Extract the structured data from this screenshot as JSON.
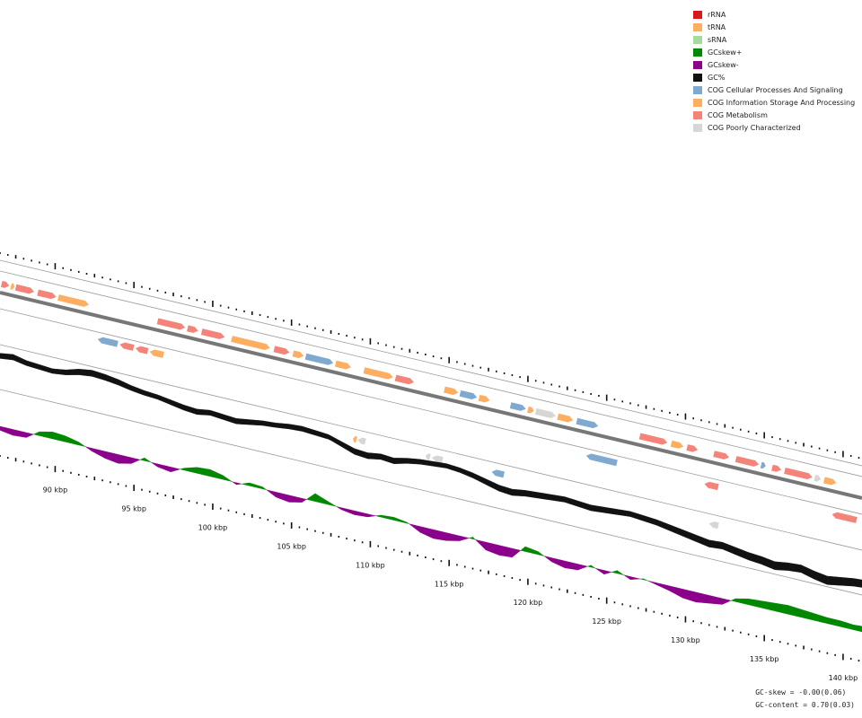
{
  "legend": [
    {
      "label": "rRNA",
      "color": "#d7191c"
    },
    {
      "label": "tRNA",
      "color": "#fdae61"
    },
    {
      "label": "sRNA",
      "color": "#a6dba0"
    },
    {
      "label": "GCskew+",
      "color": "#008800"
    },
    {
      "label": "GCskew-",
      "color": "#8b008b"
    },
    {
      "label": "GC%",
      "color": "#111111"
    },
    {
      "label": "COG Cellular Processes And Signaling",
      "color": "#7fa9cf"
    },
    {
      "label": "COG Information Storage And Processing",
      "color": "#fdae61"
    },
    {
      "label": "COG Metabolism",
      "color": "#f4847a"
    },
    {
      "label": "COG Poorly Characterized",
      "color": "#d6d6d6"
    }
  ],
  "stats": {
    "gc_skew": "GC-skew = -0.00(0.06)",
    "gc_content": "GC-content = 0.70(0.03)"
  },
  "kbp_labels": [
    "90 kbp",
    "95 kbp",
    "100 kbp",
    "105 kbp",
    "110 kbp",
    "115 kbp",
    "120 kbp",
    "125 kbp",
    "130 kbp",
    "135 kbp",
    "140 kbp"
  ],
  "colors": {
    "metabolism": "#f4847a",
    "info": "#fdae61",
    "cellular": "#7fa9cf",
    "poorly": "#d6d6d6",
    "gc_content": "#111111",
    "skew_pos": "#008800",
    "skew_neg": "#8b008b",
    "backbone": "#777777"
  },
  "features_forward": [
    {
      "start": 86.6,
      "end": 87.1,
      "cog": "metabolism"
    },
    {
      "start": 87.2,
      "end": 87.4,
      "cog": "info"
    },
    {
      "start": 87.5,
      "end": 88.7,
      "cog": "metabolism"
    },
    {
      "start": 88.9,
      "end": 90.1,
      "cog": "metabolism"
    },
    {
      "start": 90.2,
      "end": 92.2,
      "cog": "info"
    },
    {
      "start": 96.5,
      "end": 98.3,
      "cog": "metabolism"
    },
    {
      "start": 98.4,
      "end": 99.1,
      "cog": "metabolism"
    },
    {
      "start": 99.3,
      "end": 100.8,
      "cog": "metabolism"
    },
    {
      "start": 101.2,
      "end": 103.7,
      "cog": "info"
    },
    {
      "start": 103.9,
      "end": 104.9,
      "cog": "metabolism"
    },
    {
      "start": 105.1,
      "end": 105.8,
      "cog": "info"
    },
    {
      "start": 105.9,
      "end": 107.7,
      "cog": "cellular"
    },
    {
      "start": 107.8,
      "end": 108.8,
      "cog": "info"
    },
    {
      "start": 109.6,
      "end": 111.5,
      "cog": "info"
    },
    {
      "start": 111.6,
      "end": 112.8,
      "cog": "metabolism"
    },
    {
      "start": 114.7,
      "end": 115.6,
      "cog": "info"
    },
    {
      "start": 115.7,
      "end": 116.8,
      "cog": "cellular"
    },
    {
      "start": 116.9,
      "end": 117.6,
      "cog": "info"
    },
    {
      "start": 118.9,
      "end": 119.9,
      "cog": "cellular"
    },
    {
      "start": 120.0,
      "end": 120.4,
      "cog": "info"
    },
    {
      "start": 120.5,
      "end": 121.8,
      "cog": "poorly"
    },
    {
      "start": 121.9,
      "end": 122.9,
      "cog": "info"
    },
    {
      "start": 123.1,
      "end": 124.5,
      "cog": "cellular"
    },
    {
      "start": 127.1,
      "end": 128.9,
      "cog": "metabolism"
    },
    {
      "start": 129.1,
      "end": 129.9,
      "cog": "info"
    },
    {
      "start": 130.1,
      "end": 130.8,
      "cog": "metabolism"
    },
    {
      "start": 131.8,
      "end": 132.8,
      "cog": "metabolism"
    },
    {
      "start": 133.2,
      "end": 134.7,
      "cog": "metabolism"
    },
    {
      "start": 134.8,
      "end": 135.1,
      "cog": "cellular"
    },
    {
      "start": 135.5,
      "end": 136.1,
      "cog": "metabolism"
    },
    {
      "start": 136.3,
      "end": 138.1,
      "cog": "metabolism"
    },
    {
      "start": 138.2,
      "end": 138.6,
      "cog": "poorly"
    },
    {
      "start": 138.8,
      "end": 139.6,
      "cog": "info"
    }
  ],
  "features_reverse": [
    {
      "start": 92.7,
      "end": 94.0,
      "cog": "cellular"
    },
    {
      "start": 94.1,
      "end": 95.0,
      "cog": "metabolism"
    },
    {
      "start": 95.1,
      "end": 95.9,
      "cog": "metabolism"
    },
    {
      "start": 96.0,
      "end": 96.9,
      "cog": "info"
    },
    {
      "start": 123.7,
      "end": 125.7,
      "cog": "cellular"
    },
    {
      "start": 131.2,
      "end": 132.1,
      "cog": "metabolism"
    },
    {
      "start": 139.3,
      "end": 140.9,
      "cog": "metabolism"
    }
  ],
  "features_rna": [
    {
      "start": 108.9,
      "end": 109.1,
      "cog": "info"
    },
    {
      "start": 109.2,
      "end": 109.7,
      "cog": "poorly"
    },
    {
      "start": 113.5,
      "end": 113.8,
      "cog": "poorly"
    },
    {
      "start": 113.9,
      "end": 114.6,
      "cog": "poorly"
    },
    {
      "start": 117.7,
      "end": 118.5,
      "cog": "cellular"
    },
    {
      "start": 131.5,
      "end": 132.1,
      "cog": "poorly"
    }
  ],
  "gc_content_values": [
    0.04,
    0.06,
    0.03,
    0.02,
    0.01,
    0.03,
    0.07,
    0.09,
    0.08,
    0.06,
    0.03,
    0.01,
    0.0,
    -0.02,
    -0.04,
    -0.05,
    -0.03,
    -0.04,
    -0.05,
    -0.03,
    -0.01,
    0.0,
    0.02,
    0.03,
    0.02,
    0.01,
    -0.03,
    -0.07,
    -0.08,
    -0.06,
    -0.07,
    -0.04,
    -0.02,
    -0.01,
    0.0,
    -0.01,
    -0.03,
    -0.06,
    -0.09,
    -0.1,
    -0.08,
    -0.07,
    -0.06,
    -0.05,
    -0.06,
    -0.07,
    -0.06,
    -0.05,
    -0.04,
    -0.05,
    -0.06,
    -0.08,
    -0.1,
    -0.12,
    -0.14,
    -0.13,
    -0.15,
    -0.17,
    -0.18,
    -0.2,
    -0.18,
    -0.17,
    -0.2,
    -0.22,
    -0.2,
    -0.18,
    -0.17
  ],
  "gc_skew_values": [
    -0.04,
    -0.06,
    -0.05,
    0.04,
    0.07,
    0.06,
    0.03,
    -0.03,
    -0.07,
    -0.09,
    -0.06,
    0.03,
    -0.03,
    -0.05,
    0.02,
    0.06,
    0.07,
    0.04,
    -0.02,
    0.03,
    0.02,
    -0.05,
    -0.07,
    -0.04,
    0.08,
    0.03,
    -0.02,
    -0.04,
    -0.03,
    0.02,
    0.03,
    0.01,
    -0.06,
    -0.09,
    -0.08,
    -0.05,
    0.02,
    -0.08,
    -0.1,
    -0.09,
    0.05,
    0.03,
    -0.04,
    -0.07,
    -0.06,
    0.02,
    -0.04,
    0.03,
    -0.03,
    0.01,
    -0.02,
    -0.05,
    -0.09,
    -0.1,
    -0.08,
    -0.06,
    0.03,
    0.06,
    0.07,
    0.08,
    0.09,
    0.08,
    0.07,
    0.06,
    0.06,
    0.05,
    0.06
  ]
}
